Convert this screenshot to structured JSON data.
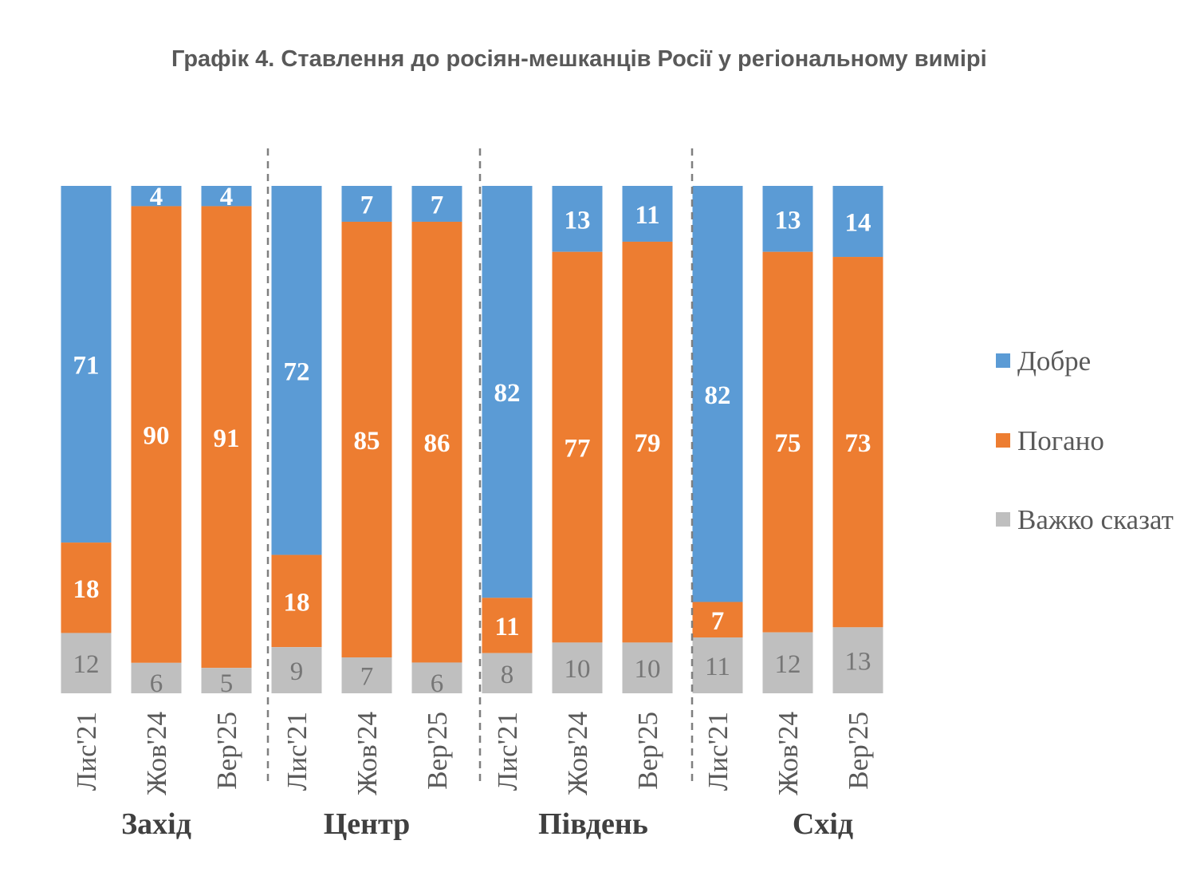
{
  "chart_data": {
    "type": "bar",
    "stacked": true,
    "percent": true,
    "title": "Графік 4. Ставлення до росіян-мешканців Росії у регіональному вимірі",
    "groups": [
      {
        "name": "Захід",
        "categories": [
          "Лис'21",
          "Жов'24",
          "Вер'25"
        ]
      },
      {
        "name": "Центр",
        "categories": [
          "Лис'21",
          "Жов'24",
          "Вер'25"
        ]
      },
      {
        "name": "Південь",
        "categories": [
          "Лис'21",
          "Жов'24",
          "Вер'25"
        ]
      },
      {
        "name": "Схід",
        "categories": [
          "Лис'21",
          "Жов'24",
          "Вер'25"
        ]
      }
    ],
    "series": [
      {
        "name": "Добре",
        "color": "#5b9bd5",
        "values": [
          71,
          4,
          4,
          72,
          7,
          7,
          82,
          13,
          11,
          82,
          13,
          14
        ]
      },
      {
        "name": "Погано",
        "color": "#ed7d31",
        "values": [
          18,
          90,
          91,
          18,
          85,
          86,
          11,
          77,
          79,
          7,
          75,
          73
        ]
      },
      {
        "name": "Важко сказат",
        "color": "#bfbfbf",
        "values": [
          12,
          6,
          5,
          9,
          7,
          6,
          8,
          10,
          10,
          11,
          12,
          13
        ]
      }
    ],
    "legend_position": "right",
    "grid": false
  }
}
